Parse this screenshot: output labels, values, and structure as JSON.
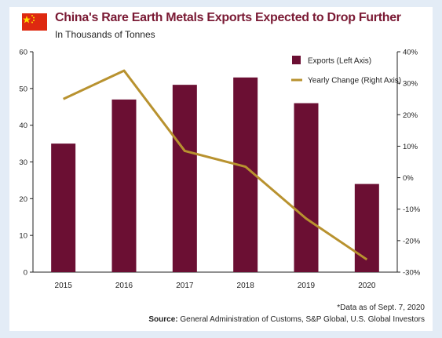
{
  "header": {
    "title": "China's Rare Earth Metals Exports Expected to Drop Further",
    "subtitle": "In Thousands of Tonnes",
    "flag_icon": "china-flag-icon"
  },
  "footer": {
    "footnote": "*Data as of Sept. 7, 2020",
    "source_label": "Source:",
    "source_text": "General Administration of Customs, S&P Global, U.S. Global Investors"
  },
  "colors": {
    "bar": "#6b0f33",
    "line": "#b8922f",
    "title": "#7a1a34",
    "background": "#e3ecf6"
  },
  "chart_data": {
    "type": "bar",
    "title": "China's Rare Earth Metals Exports Expected to Drop Further",
    "subtitle": "In Thousands of Tonnes",
    "categories": [
      "2015",
      "2016",
      "2017",
      "2018",
      "2019",
      "2020"
    ],
    "series": [
      {
        "name": "Exports (Left Axis)",
        "type": "bar",
        "axis": "left",
        "values": [
          35,
          47,
          51,
          53,
          46,
          24
        ]
      },
      {
        "name": "Yearly Change (Right Axis)",
        "type": "line",
        "axis": "right",
        "values": [
          25,
          34,
          8.5,
          3.5,
          -13,
          -26
        ]
      }
    ],
    "left_axis": {
      "range": [
        0,
        60
      ],
      "ticks": [
        0,
        10,
        20,
        30,
        40,
        50,
        60
      ],
      "tick_labels": [
        "0",
        "10",
        "20",
        "30",
        "40",
        "50",
        "60"
      ]
    },
    "right_axis": {
      "range": [
        -30,
        40
      ],
      "ticks": [
        -30,
        -20,
        -10,
        0,
        10,
        20,
        30,
        40
      ],
      "tick_labels": [
        "-30%",
        "-20%",
        "-10%",
        "0%",
        "10%",
        "20%",
        "30%",
        "40%"
      ]
    },
    "grid": false,
    "legend_position": "top-right"
  }
}
